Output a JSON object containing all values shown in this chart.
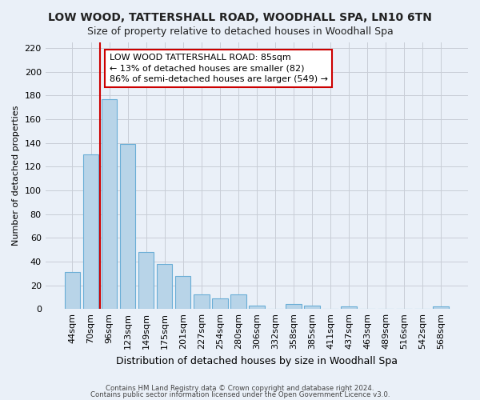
{
  "title": "LOW WOOD, TATTERSHALL ROAD, WOODHALL SPA, LN10 6TN",
  "subtitle": "Size of property relative to detached houses in Woodhall Spa",
  "xlabel": "Distribution of detached houses by size in Woodhall Spa",
  "ylabel": "Number of detached properties",
  "bar_labels": [
    "44sqm",
    "70sqm",
    "96sqm",
    "123sqm",
    "149sqm",
    "175sqm",
    "201sqm",
    "227sqm",
    "254sqm",
    "280sqm",
    "306sqm",
    "332sqm",
    "358sqm",
    "385sqm",
    "411sqm",
    "437sqm",
    "463sqm",
    "489sqm",
    "516sqm",
    "542sqm",
    "568sqm"
  ],
  "bar_values": [
    31,
    130,
    177,
    139,
    48,
    38,
    28,
    12,
    9,
    12,
    3,
    0,
    4,
    3,
    0,
    2,
    0,
    0,
    0,
    0,
    2
  ],
  "bar_color": "#b8d4e8",
  "bar_edge_color": "#6aaed6",
  "vline_color": "#cc0000",
  "annotation_line1": "LOW WOOD TATTERSHALL ROAD: 85sqm",
  "annotation_line2": "← 13% of detached houses are smaller (82)",
  "annotation_line3": "86% of semi-detached houses are larger (549) →",
  "annotation_box_facecolor": "#ffffff",
  "annotation_box_edgecolor": "#cc0000",
  "ylim": [
    0,
    225
  ],
  "yticks": [
    0,
    20,
    40,
    60,
    80,
    100,
    120,
    140,
    160,
    180,
    200,
    220
  ],
  "footer_line1": "Contains HM Land Registry data © Crown copyright and database right 2024.",
  "footer_line2": "Contains public sector information licensed under the Open Government Licence v3.0.",
  "bg_color": "#eaf0f8",
  "plot_bg_color": "#eaf0f8",
  "grid_color": "#c8cdd6",
  "title_fontsize": 10,
  "subtitle_fontsize": 9,
  "xlabel_fontsize": 9,
  "ylabel_fontsize": 8,
  "tick_fontsize": 8,
  "annot_fontsize": 8
}
